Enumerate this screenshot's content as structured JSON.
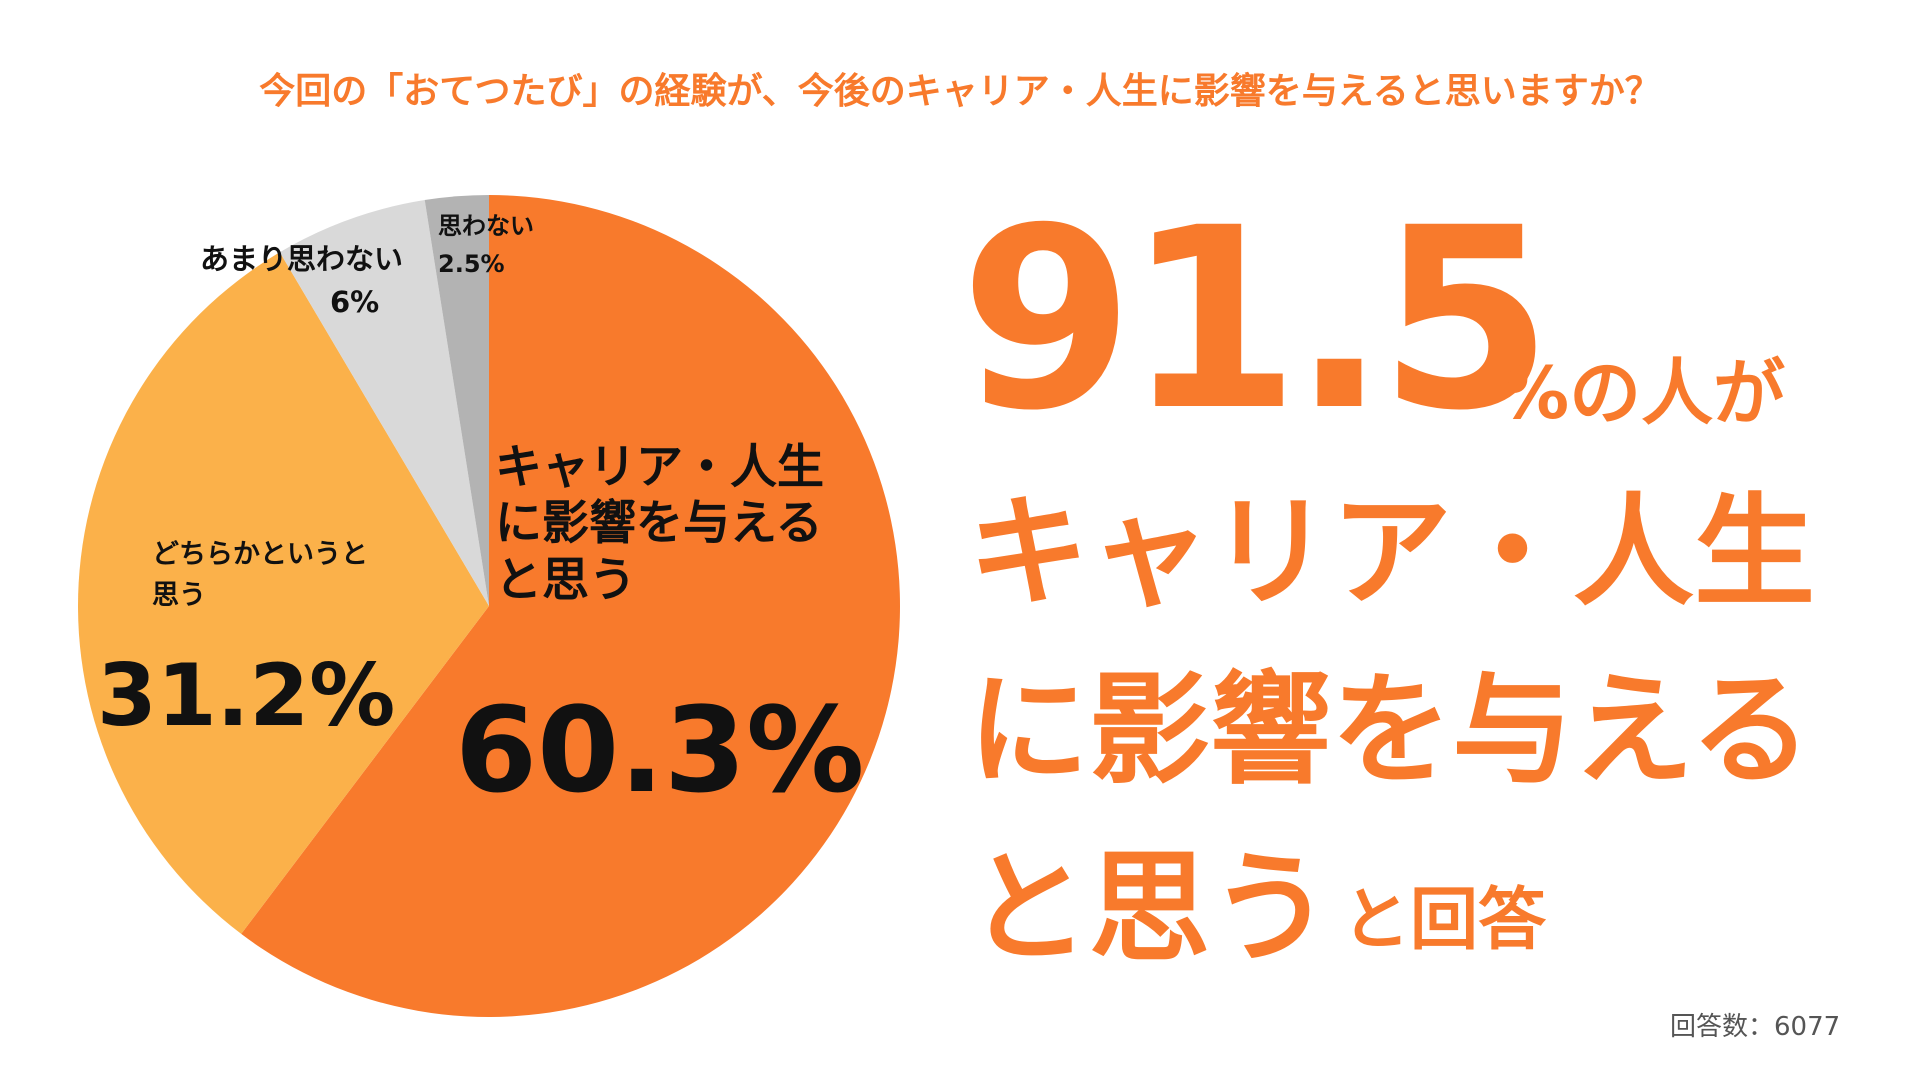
{
  "chart_data": {
    "type": "pie",
    "title": "今回の「おてつたび」の経験が、今後のキャリア・人生に影響を与えると思いますか？",
    "categories": [
      "キャリア・人生に影響を与えると思う",
      "どちらかというと思う",
      "あまり思わない",
      "思わない"
    ],
    "values": [
      60.3,
      31.2,
      6,
      2.5
    ],
    "value_labels": [
      "60.3%",
      "31.2%",
      "6%",
      "2.5%"
    ],
    "colors": [
      "#f87a2c",
      "#fbb14a",
      "#d9d9d9",
      "#b3b3b3"
    ],
    "callout": {
      "number": 91.5,
      "unit": "%の人が",
      "lines": [
        "キャリア・人生",
        "に影響を与える",
        "と思う"
      ],
      "suffix": "と回答"
    },
    "note": "回答数：6077"
  }
}
